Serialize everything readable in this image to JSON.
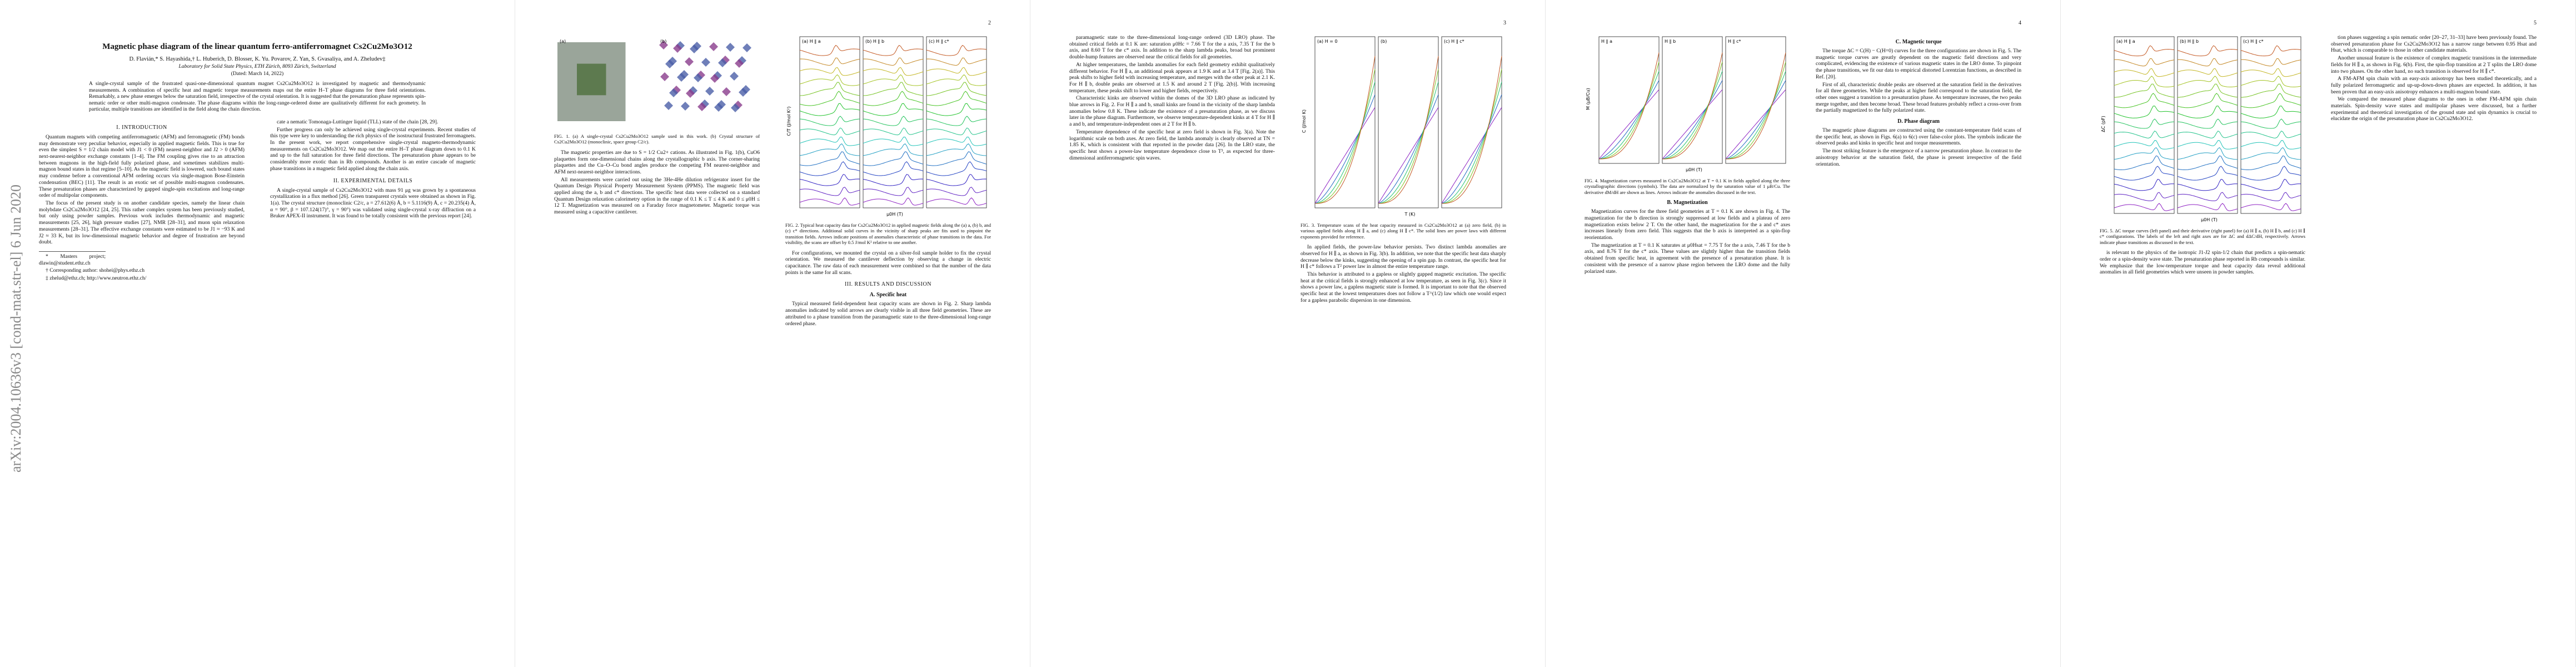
{
  "arxiv_stamp": "arXiv:2004.10636v3 [cond-mat.str-el] 6 Jun 2020",
  "pages": [
    {
      "header": {
        "title": "Magnetic phase diagram of the linear quantum ferro-antiferromagnet Cs2Cu2Mo3O12",
        "authors": "D. Flavián,* S. Hayashida,† L. Huberich, D. Blosser, K. Yu. Povarov, Z. Yan, S. Gvasaliya, and A. Zheludev‡",
        "affiliation": "Laboratory for Solid State Physics, ETH Zürich, 8093 Zürich, Switzerland",
        "date": "(Dated: March 14, 2022)",
        "abstract": "A single-crystal sample of the frustrated quasi-one-dimensional quantum magnet Cs2Cu2Mo3O12 is investigated by magnetic and thermodynamic measurements. A combination of specific heat and magnetic torque measurements maps out the entire H–T phase diagrams for three field orientations. Remarkably, a new phase emerges below the saturation field, irrespective of the crystal orientation. It is suggested that the presaturation phase represents spin-nematic order or other multi-magnon condensate. The phase diagrams within the long-range-ordered dome are qualitatively different for each geometry. In particular, multiple transitions are identified in the field along the chain direction."
      },
      "columns": [
        [
          {
            "heading": "I. INTRODUCTION"
          },
          {
            "text": "Quantum magnets with competing antiferromagnetic (AFM) and ferromagnetic (FM) bonds may demonstrate very peculiar behavior, especially in applied magnetic fields. This is true for even the simplest S = 1/2 chain model with J1 < 0 (FM) nearest-neighbor and J2 > 0 (AFM) next-nearest-neighbor exchange constants [1–4]. The FM coupling gives rise to an attraction between magnons in the high-field fully polarized phase, and sometimes stabilizes multi-magnon bound states in that regime [5–10]. As the magnetic field is lowered, such bound states may condense before a conventional AFM ordering occurs via single-magnon Bose-Einstein condensation (BEC) [11]. The result is an exotic set of possible multi-magnon condensates. These presaturation phases are characterized by gapped single-spin excitations and long-range order of multipolar components."
          },
          {
            "text": "The focus of the present study is on another candidate species, namely the linear chain molybdate Cs2Cu2Mo3O12 [24, 25]. This rather complex system has been previously studied, but only using powder samples. Previous work includes thermodynamic and magnetic measurements [25, 26], high pressure studies [27], NMR [28–31], and muon spin relaxation measurements [28–31]. The effective exchange constants were estimated to be J1 ≈ −93 K and J2 ≈ 33 K, but its low-dimensional magnetic behavior and degree of frustration are beyond doubt."
          },
          {
            "footnote": "* Masters project; dlawin@student.ethz.ch"
          },
          {
            "footnote": "† Corresponding author: shohei@phys.ethz.ch"
          },
          {
            "footnote": "‡ zhelud@ethz.ch; http://www.neutron.ethz.ch/"
          }
        ],
        [
          {
            "text": "cate a nematic Tomonaga-Luttinger liquid (TLL) state of the chain [28, 29]."
          },
          {
            "text": "Further progress can only be achieved using single-crystal experiments. Recent studies of this type were key to understanding the rich physics of the isostructural frustrated ferromagnets. In the present work, we report comprehensive single-crystal magneto-thermodynamic measurements on Cs2Cu2Mo3O12. We map out the entire H–T phase diagram down to 0.1 K and up to the full saturation for three field directions. The presaturation phase appears to be considerably more exotic than in Rb compounds. Another is an entire cascade of magnetic phase transitions in a magnetic field applied along the chain axis."
          },
          {
            "heading": "II. EXPERIMENTAL DETAILS"
          },
          {
            "text": "A single-crystal sample of Cs2Cu2Mo3O12 with mass 91 μg was grown by a spontaneous crystallization in a flux method [26]. Green transparent crystals were obtained as shown in Fig. 1(a). The crystal structure (monoclinic C2/c, a = 27.612(6) Å, b = 5.1116(9) Å, c = 20.235(4) Å, α = 90°, β = 107.124(17)°, γ = 90°) was validated using single-crystal x-ray diffraction on a Bruker APEX-II instrument. It was found to be totally consistent with the previous report [24]."
          }
        ]
      ]
    },
    {
      "number": "2",
      "columns": [
        [
          {
            "figure": {
              "panels": [
                "(a)",
                "(b)"
              ],
              "caption": "FIG. 1. (a) A single-crystal Cs2Cu2Mo3O12 sample used in this work. (b) Crystal structure of Cs2Cu2Mo3O12 (monoclinic, space group C2/c)."
            }
          },
          {
            "text": "The magnetic properties are due to S = 1/2 Cu2+ cations. As illustrated in Fig. 1(b), CuO6 plaquettes form one-dimensional chains along the crystallographic b axis. The corner-sharing plaquettes and the Cu–O–Cu bond angles produce the competing FM nearest-neighbor and AFM next-nearest-neighbor interactions."
          },
          {
            "text": "All measurements were carried out using the 3He-4He dilution refrigerator insert for the Quantum Design Physical Property Measurement System (PPMS). The magnetic field was applied along the a, b and c* directions. The specific heat data were collected on a standard Quantum Design relaxation calorimetry option in the range of 0.1 K ≤ T ≤ 4 K and 0 ≤ μ0H ≤ 12 T. Magnetization was measured on a Faraday force magnetometer. Magnetic torque was measured using a capacitive cantilever."
          }
        ],
        [
          {
            "figure": {
              "panels": [
                "(a) H ∥ a",
                "(b) H ∥ b",
                "(c) H ∥ c*"
              ],
              "xlabel": "μ0H (T)",
              "ylabel": "C/T (J/mol K²)",
              "caption": "FIG. 2. Typical heat capacity data for Cs2Cu2Mo3O12 in applied magnetic fields along the (a) a, (b) b, and (c) c* directions. Additional solid curves in the vicinity of sharp peaks are fits used to pinpoint the transition fields. Arrows indicate positions of anomalies characteristic of phase transitions in the data. For visibility, the scans are offset by 0.5 J/mol K² relative to one another."
            }
          },
          {
            "text": "For configurations, we mounted the crystal on a silver-foil sample holder to fix the crystal orientation. We measured the cantilever deflection by observing a change in electric capacitance. The raw data of each measurement were combined so that the number of the data points is the same for all scans."
          },
          {
            "heading": "III. RESULTS AND DISCUSSION"
          },
          {
            "subheading": "A. Specific heat"
          },
          {
            "text": "Typical measured field-dependent heat capacity scans are shown in Fig. 2. Sharp lambda anomalies indicated by solid arrows are clearly visible in all three field geometries. These are attributed to a phase transition from the paramagnetic state to the three-dimensional long-range ordered phase."
          }
        ]
      ]
    },
    {
      "number": "3",
      "columns": [
        [
          {
            "text": "paramagnetic state to the three-dimensional long-range ordered (3D LRO) phase. The obtained critical fields at 0.1 K are: saturation μ0Hc = 7.66 T for the a axis, 7.35 T for the b axis, and 8.60 T for the c* axis. In addition to the sharp lambda peaks, broad but prominent double-hump features are observed near the critical fields for all geometries."
          },
          {
            "text": "At higher temperatures, the lambda anomalies for each field geometry exhibit qualitatively different behavior. For H ∥ a, an additional peak appears at 1.9 K and at 3.4 T [Fig. 2(a)]. This peak shifts to higher field with increasing temperature, and merges with the other peak at 2.1 K. For H ∥ b, double peaks are observed at 1.5 K and around 2 T [Fig. 2(b)]. With increasing temperature, these peaks shift to lower and higher fields, respectively."
          },
          {
            "text": "Characteristic kinks are observed within the domes of the 3D LRO phase as indicated by blue arrows in Fig. 2. For H ∥ a and b, small kinks are found in the vicinity of the sharp lambda anomalies below 0.8 K. These indicate the existence of a presaturation phase, as we discuss later in the phase diagram. Furthermore, we observe temperature-dependent kinks at 4 T for H ∥ a and b, and temperature-independent ones at 2 T for H ∥ b."
          },
          {
            "text": "Temperature dependence of the specific heat at zero field is shown in Fig. 3(a). Note the logarithmic scale on both axes. At zero field, the lambda anomaly is clearly observed at TN = 1.85 K, which is consistent with that reported in the powder data [26]. In the LRO state, the specific heat shows a power-law temperature dependence close to T³, as expected for three-dimensional antiferromagnetic spin waves."
          }
        ],
        [
          {
            "figure": {
              "panels": [
                "(a) H = 0",
                "(b)",
                "(c) H ∥ c*"
              ],
              "xlabel": "T (K)",
              "ylabel": "C (J/mol K)",
              "caption": "FIG. 3. Temperature scans of the heat capacity measured in Cs2Cu2Mo3O12 at (a) zero field, (b) in various applied fields along H ∥ a, and (c) along H ∥ c*. The solid lines are power laws with different exponents provided for reference."
            }
          },
          {
            "text": "In applied fields, the power-law behavior persists. Two distinct lambda anomalies are observed for H ∥ a, as shown in Fig. 3(b). In addition, we note that the specific heat data sharply decrease below the kinks, suggesting the opening of a spin gap. In contrast, the specific heat for H ∥ c* follows a T² power law in almost the entire temperature range."
          },
          {
            "text": "This behavior is attributed to a gapless or slightly gapped magnetic excitation. The specific heat at the critical fields is strongly enhanced at low temperature, as seen in Fig. 3(c). Since it shows a power law, a gapless magnetic state is formed. It is important to note that the observed specific heat at the lowest temperatures does not follow a T^(1/2) law which one would expect for a gapless parabolic dispersion in one dimension."
          }
        ]
      ]
    },
    {
      "number": "4",
      "columns": [
        [
          {
            "figure": {
              "panels": [
                "H ∥ a",
                "H ∥ b",
                "H ∥ c*"
              ],
              "xlabel": "μ0H (T)",
              "ylabel": "M (μB/Cu)",
              "caption": "FIG. 4. Magnetization curves measured in Cs2Cu2Mo3O12 at T = 0.1 K in fields applied along the three crystallographic directions (symbols). The data are normalized by the saturation value of 1 μB/Cu. The derivative dM/dH are shown as lines. Arrows indicate the anomalies discussed in the text."
            }
          },
          {
            "subheading": "B. Magnetization"
          },
          {
            "text": "Magnetization curves for the three field geometries at T = 0.1 K are shown in Fig. 4. The magnetization for the b direction is strongly suppressed at low fields and a plateau of zero magnetization exists below 2 T. On the other hand, the magnetization for the a and c* axes increases linearly from zero field. This suggests that the b axis is interpreted as a spin-flop reorientation."
          },
          {
            "text": "The magnetization at T = 0.1 K saturates at μ0Hsat = 7.75 T for the a axis, 7.46 T for the b axis, and 8.76 T for the c* axis. These values are slightly higher than the transition fields obtained from specific heat, in agreement with the presence of a presaturation phase. It is consistent with the presence of a narrow phase region between the LRO dome and the fully polarized state."
          }
        ],
        [
          {
            "subheading": "C. Magnetic torque"
          },
          {
            "text": "The torque ΔC = C(H) − C(H=0) curves for the three configurations are shown in Fig. 5. The magnetic torque curves are greatly dependent on the magnetic field directions and very complicated, evidencing the existence of various magnetic states in the LRO dome. To pinpoint the phase transitions, we fit our data to empirical distorted Lorentzian functions, as described in Ref. [20]."
          },
          {
            "text": "First of all, characteristic double peaks are observed at the saturation field in the derivatives for all three geometries. While the peaks at higher field correspond to the saturation field, the other ones suggest a transition to a presaturation phase. As temperature increases, the two peaks merge together, and then become broad. These broad features probably reflect a cross-over from the partially magnetized to the fully polarized state."
          },
          {
            "subheading": "D. Phase diagram"
          },
          {
            "text": "The magnetic phase diagrams are constructed using the constant-temperature field scans of the specific heat, as shown in Figs. 6(a) to 6(c) over false-color plots. The symbols indicate the observed peaks and kinks in specific heat and torque measurements."
          },
          {
            "text": "The most striking feature is the emergence of a narrow presaturation phase. In contrast to the anisotropy behavior at the saturation field, the phase is present irrespective of the field orientation."
          }
        ]
      ]
    },
    {
      "number": "5",
      "columns": [
        [
          {
            "figure": {
              "panels": [
                "(a) H ∥ a",
                "(b) H ∥ b",
                "(c) H ∥ c*"
              ],
              "xlabel": "μ0H (T)",
              "ylabel": "ΔC (pF)",
              "caption": "FIG. 5. ΔC torque curves (left panel) and their derivative (right panel) for (a) H ∥ a, (b) H ∥ b, and (c) H ∥ c* configurations. The labels of the left and right axes are for ΔC and dΔC/dH, respectively. Arrows indicate phase transitions as discussed in the text."
            }
          },
          {
            "text": "is relevant to the physics of the isotropic J1-J2 spin-1/2 chain that predicts a spin-nematic order or a spin-density wave state. The presaturation phase reported in Rb compounds is similar. We emphasize that the low-temperature torque and heat capacity data reveal additional anomalies in all field geometries which were unseen in powder samples."
          }
        ],
        [
          {
            "text": "tion phases suggesting a spin nematic order [20–27, 31–33] have been previously found. The observed presaturation phase for Cs2Cu2Mo3O12 has a narrow range between 0.95 Hsat and Hsat, which is comparable to those in other candidate materials."
          },
          {
            "text": "Another unusual feature is the existence of complex magnetic transitions in the intermediate fields for H ∥ a, as shown in Fig. 6(b). First, the spin-flop transition at 2 T splits the LRO dome into two phases. On the other hand, no such transition is observed for H ∥ c*."
          },
          {
            "text": "A FM-AFM spin chain with an easy-axis anisotropy has been studied theoretically, and a fully polarized ferromagnetic and up-up-down-down phases are expected. In addition, it has been proven that an easy-axis anisotropy enhances a multi-magnon bound state."
          },
          {
            "text": "We compared the measured phase diagrams to the ones in other FM-AFM spin chain materials. Spin-density wave states and multipolar phases were discussed, but a further experimental and theoretical investigation of the ground state and spin dynamics is crucial to elucidate the origin of the presaturation phase in Cs2Cu2Mo3O12."
          }
        ]
      ]
    }
  ]
}
